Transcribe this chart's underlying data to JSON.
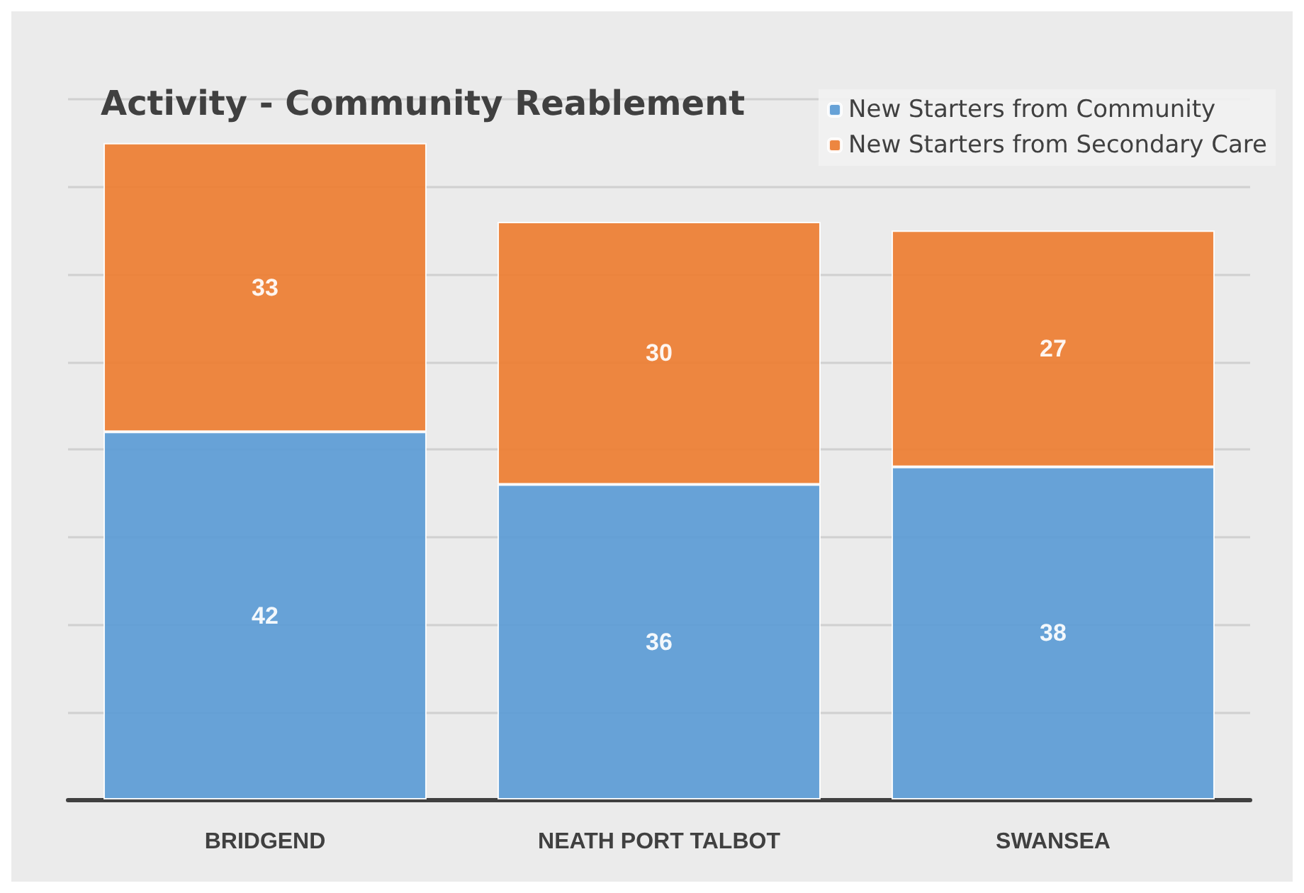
{
  "chart_data": {
    "type": "bar",
    "title": "Activity - Community Reablement",
    "categories": [
      "BRIDGEND",
      "NEATH PORT TALBOT",
      "SWANSEA"
    ],
    "series": [
      {
        "name": "New Starters from Community",
        "color": "#5b9bd5",
        "values": [
          42,
          36,
          38
        ]
      },
      {
        "name": "New Starters from Secondary Care",
        "color": "#ed7d31",
        "values": [
          33,
          30,
          27
        ]
      }
    ],
    "stacked": true,
    "data_labels": true,
    "ylim": [
      0,
      80
    ],
    "yticks": [
      {
        "value": 0,
        "label": null
      },
      {
        "value": 10,
        "label": null
      },
      {
        "value": 20,
        "label": null
      },
      {
        "value": 30,
        "label": null
      },
      {
        "value": 40,
        "label": null
      },
      {
        "value": 50,
        "label": null
      },
      {
        "value": 60,
        "label": null
      },
      {
        "value": 70,
        "label": null
      },
      {
        "value": 80,
        "label": null
      }
    ],
    "grid": "y",
    "legend": "top right",
    "tick_labels": "x"
  }
}
